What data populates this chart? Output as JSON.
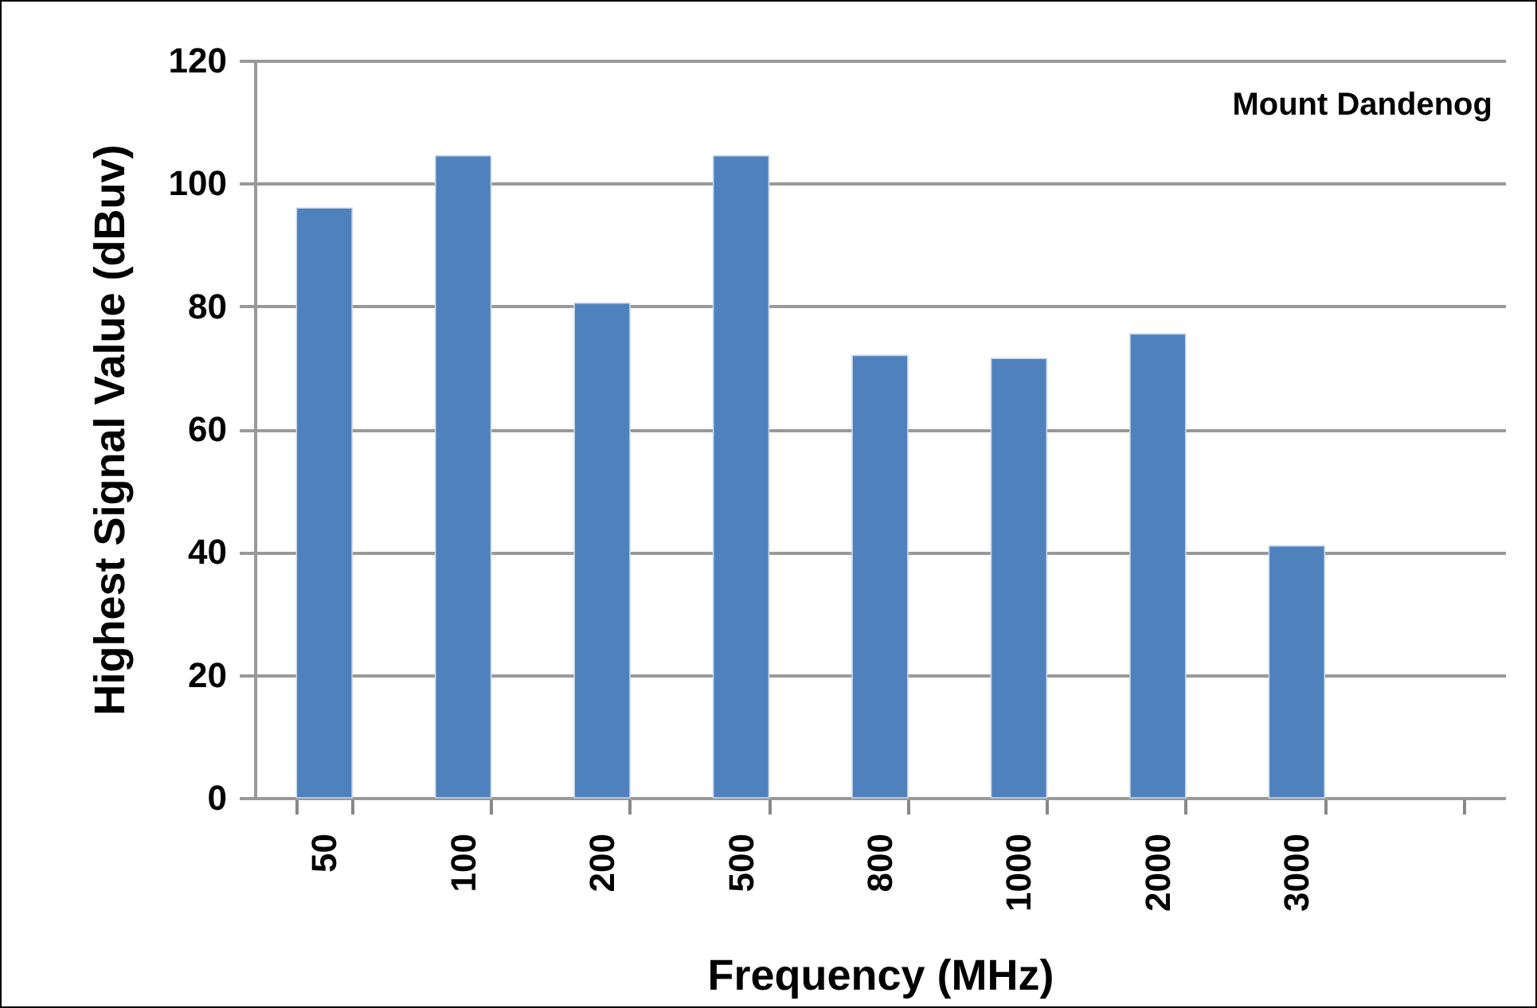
{
  "chart_data": {
    "type": "bar",
    "xlabel": "Frequency (MHz)",
    "ylabel": "Highest Signal Value (dBuv)",
    "categories": [
      "50",
      "100",
      "200",
      "500",
      "800",
      "1000",
      "2000",
      "3000",
      null
    ],
    "values": [
      96,
      104.5,
      80.5,
      104.5,
      72,
      71.5,
      75.5,
      41,
      null
    ],
    "color": "#4f81bd",
    "ylim": [
      0,
      120
    ],
    "yticks": [
      0,
      20,
      40,
      60,
      80,
      100,
      120
    ],
    "grid": "y",
    "annotations": [
      "Mount Dandenog"
    ]
  }
}
